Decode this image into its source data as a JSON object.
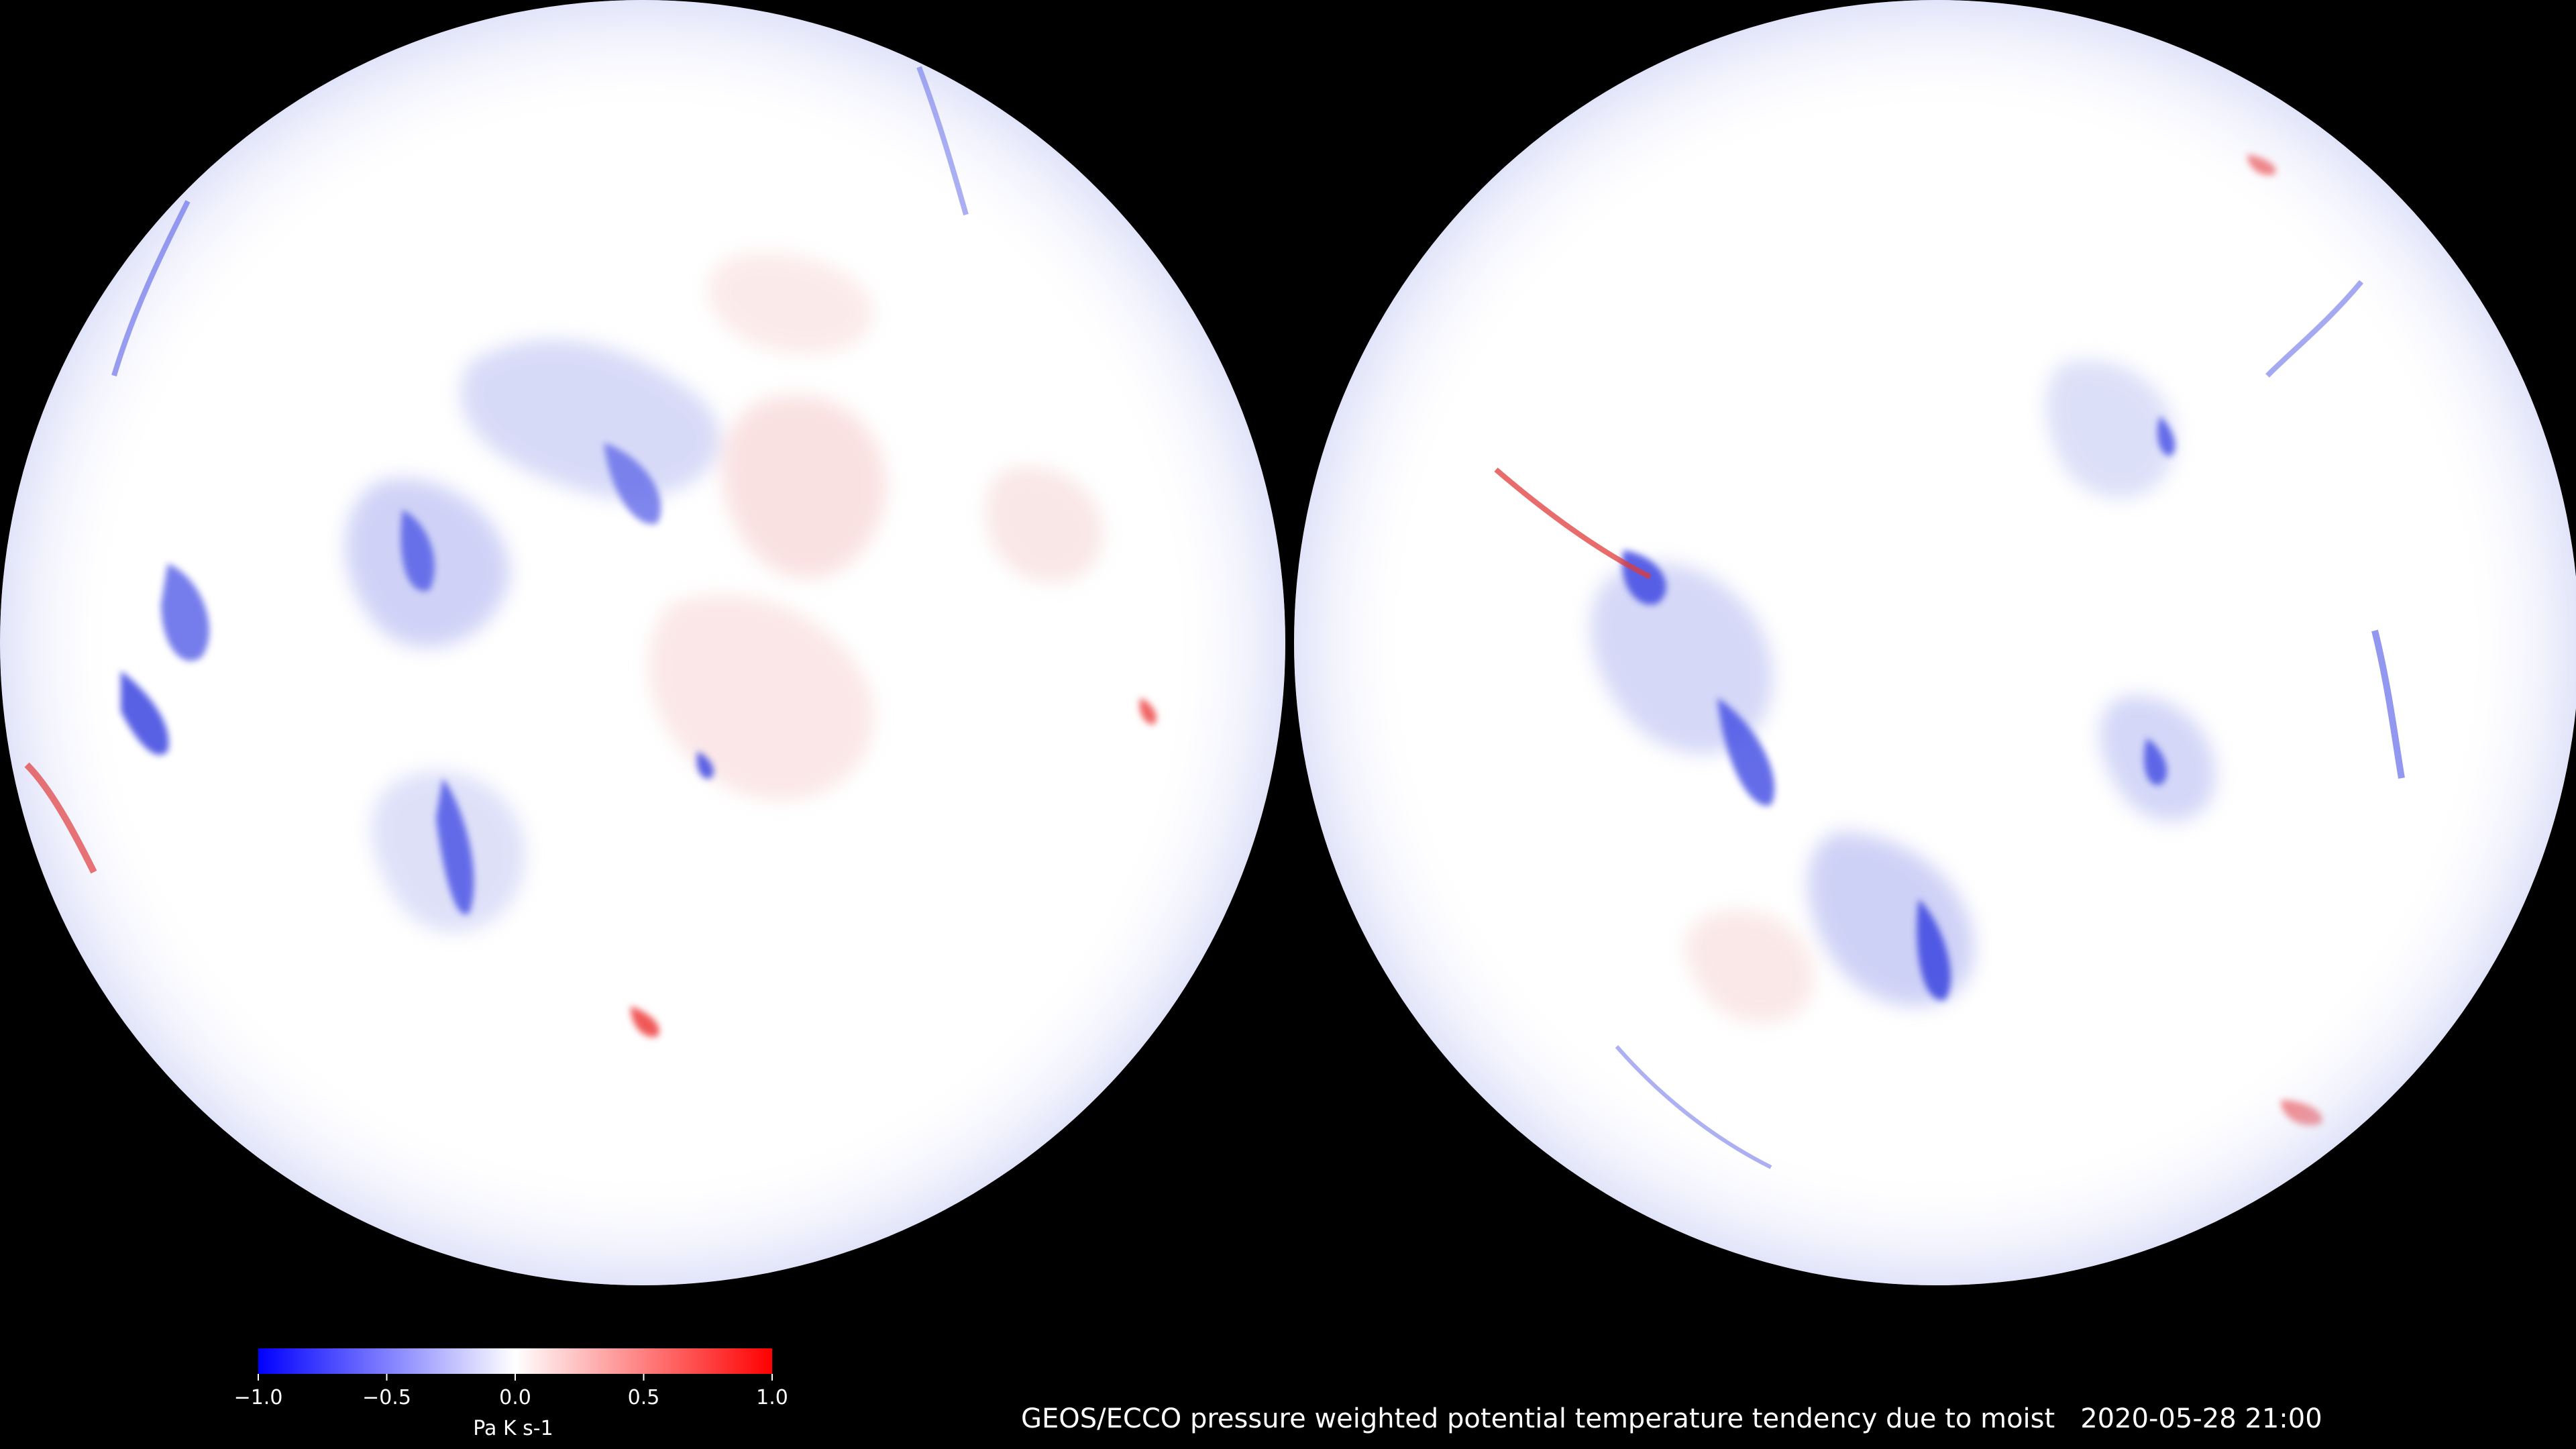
{
  "caption": {
    "title": "GEOS/ECCO pressure weighted potential temperature tendency due to moist",
    "timestamp": "2020-05-28 21:00"
  },
  "colorbar": {
    "units": "Pa K s-1",
    "min": -1.0,
    "max": 1.0,
    "ticks": [
      "−1.0",
      "−0.5",
      "0.0",
      "0.5",
      "1.0"
    ],
    "tick_values": [
      -1.0,
      -0.5,
      0.0,
      0.5,
      1.0
    ],
    "colormap": [
      "#0000ff",
      "#ffffff",
      "#ff0000"
    ]
  },
  "maps": {
    "left": {
      "projection": "orthographic",
      "hemisphere": "northern"
    },
    "right": {
      "projection": "orthographic",
      "hemisphere": "southern"
    }
  },
  "colors": {
    "background": "#000000",
    "neutral": "#ffffff",
    "negative": "#0000ff",
    "positive": "#ff0000"
  }
}
